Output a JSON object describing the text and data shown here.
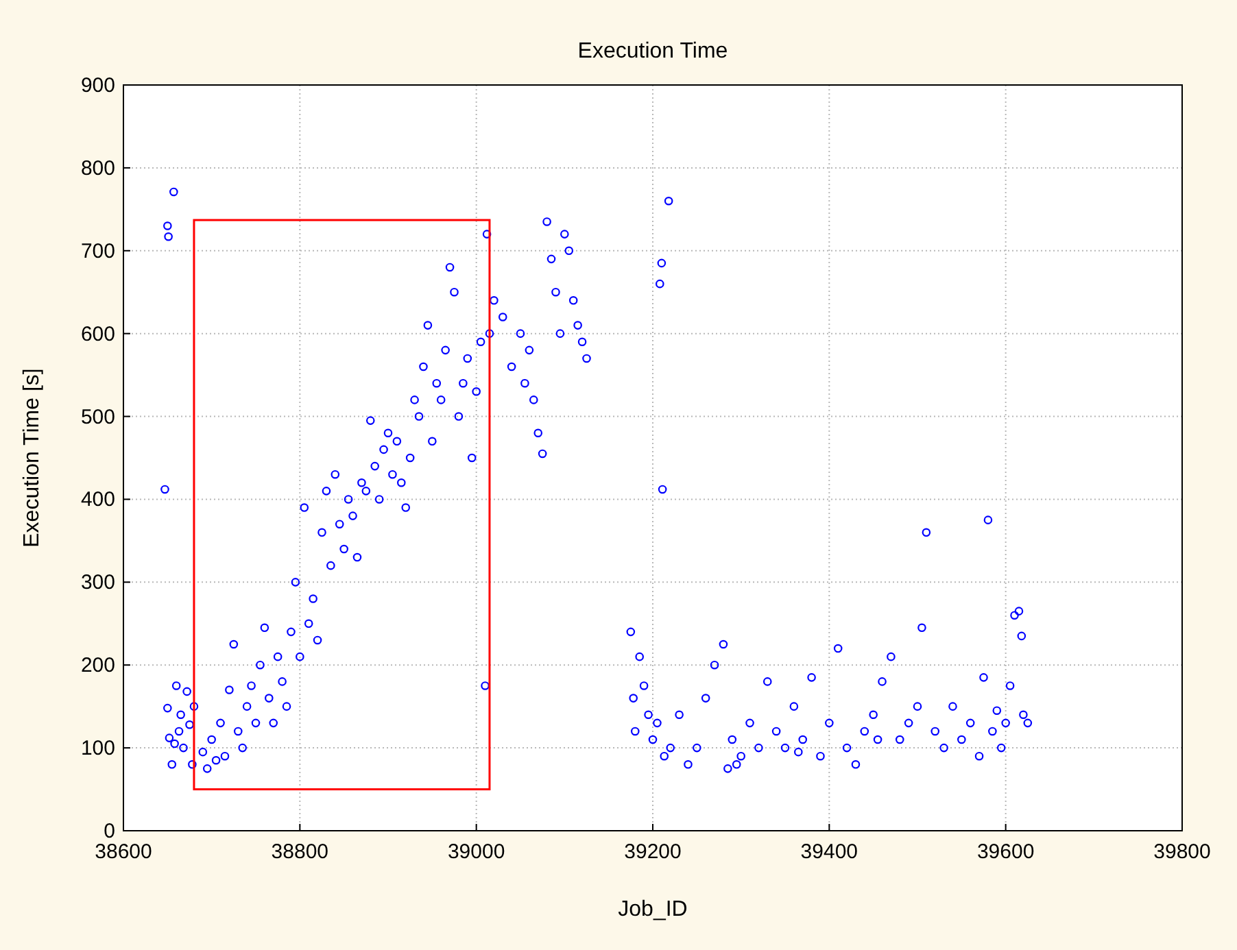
{
  "chart_data": {
    "type": "scatter",
    "title": "Execution Time",
    "xlabel": "Job_ID",
    "ylabel": "Execution Time [s]",
    "xlim": [
      38600,
      39800
    ],
    "xticks": [
      38600,
      38800,
      39000,
      39200,
      39400,
      39600,
      39800
    ],
    "ylim": [
      0,
      900
    ],
    "yticks": [
      0,
      100,
      200,
      300,
      400,
      500,
      600,
      700,
      800,
      900
    ],
    "grid": true,
    "marker": "circle",
    "series": [
      {
        "color": "#0000ff",
        "x": [
          38647,
          38650,
          38651,
          38657,
          38650,
          38652,
          38655,
          38660,
          38665,
          38668,
          38672,
          38675,
          38678,
          38680,
          38658,
          38663,
          38690,
          38695,
          38700,
          38705,
          38710,
          38715,
          38720,
          38725,
          38730,
          38735,
          38740,
          38745,
          38750,
          38755,
          38760,
          38765,
          38770,
          38775,
          38780,
          38785,
          38790,
          38795,
          38800,
          38805,
          38810,
          38815,
          38820,
          38825,
          38830,
          38835,
          38840,
          38845,
          38850,
          38855,
          38860,
          38865,
          38870,
          38875,
          38880,
          38885,
          38890,
          38895,
          38900,
          38905,
          38910,
          38915,
          38920,
          38925,
          38930,
          38935,
          38940,
          38945,
          38950,
          38955,
          38960,
          38965,
          38970,
          38975,
          38980,
          38985,
          38990,
          38995,
          39000,
          39005,
          39010,
          39012,
          39015,
          39020,
          39030,
          39040,
          39050,
          39055,
          39060,
          39065,
          39070,
          39075,
          39080,
          39085,
          39090,
          39095,
          39100,
          39105,
          39110,
          39115,
          39120,
          39125,
          39175,
          39178,
          39180,
          39185,
          39190,
          39195,
          39200,
          39205,
          39208,
          39210,
          39211,
          39213,
          39218,
          39220,
          39230,
          39240,
          39250,
          39260,
          39270,
          39280,
          39285,
          39290,
          39300,
          39310,
          39320,
          39330,
          39340,
          39350,
          39360,
          39370,
          39380,
          39390,
          39400,
          39410,
          39420,
          39430,
          39440,
          39450,
          39460,
          39470,
          39480,
          39490,
          39500,
          39505,
          39510,
          39520,
          39530,
          39540,
          39550,
          39560,
          39570,
          39575,
          39580,
          39585,
          39590,
          39595,
          39600,
          39605,
          39610,
          39615,
          39618,
          39620,
          39625,
          39365,
          39455,
          39295
        ],
        "values": [
          412,
          730,
          717,
          771,
          148,
          112,
          80,
          175,
          140,
          100,
          168,
          128,
          80,
          150,
          105,
          120,
          95,
          75,
          110,
          85,
          130,
          90,
          170,
          225,
          120,
          100,
          150,
          175,
          130,
          200,
          245,
          160,
          130,
          210,
          180,
          150,
          240,
          300,
          210,
          390,
          250,
          280,
          230,
          360,
          410,
          320,
          430,
          370,
          340,
          400,
          380,
          330,
          420,
          410,
          495,
          440,
          400,
          460,
          480,
          430,
          470,
          420,
          390,
          450,
          520,
          500,
          560,
          610,
          470,
          540,
          520,
          580,
          680,
          650,
          500,
          540,
          570,
          450,
          530,
          590,
          175,
          720,
          600,
          640,
          620,
          560,
          600,
          540,
          580,
          520,
          480,
          455,
          735,
          690,
          650,
          600,
          720,
          700,
          640,
          610,
          590,
          570,
          240,
          160,
          120,
          210,
          175,
          140,
          110,
          130,
          660,
          685,
          412,
          90,
          760,
          100,
          140,
          80,
          100,
          160,
          200,
          225,
          75,
          110,
          90,
          130,
          100,
          180,
          120,
          100,
          150,
          110,
          185,
          90,
          130,
          220,
          100,
          80,
          120,
          140,
          180,
          210,
          110,
          130,
          150,
          245,
          360,
          120,
          100,
          150,
          110,
          130,
          90,
          185,
          375,
          120,
          145,
          100,
          130,
          175,
          260,
          265,
          235,
          140,
          130,
          95,
          110,
          80
        ]
      }
    ]
  }
}
